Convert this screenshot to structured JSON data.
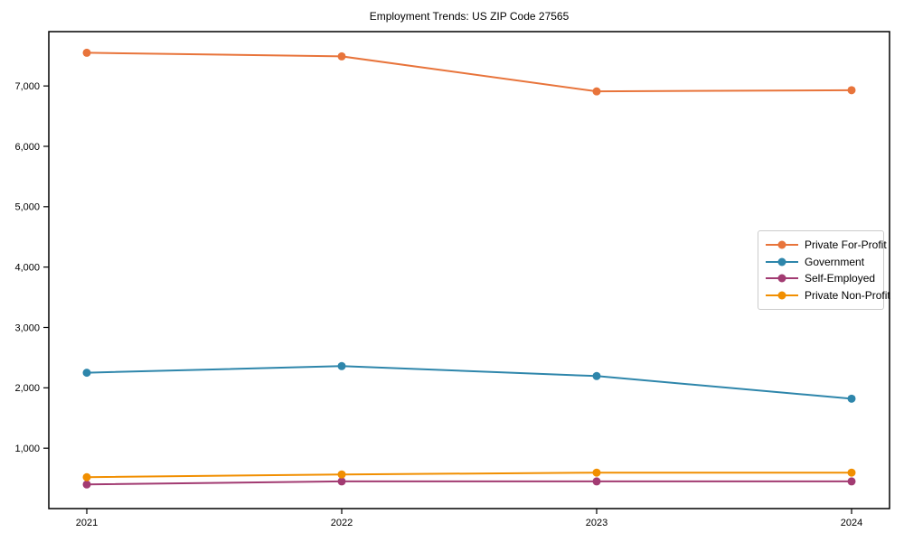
{
  "figure": {
    "title": "Employment Trends: US ZIP Code 27565"
  },
  "chart_data": {
    "type": "line",
    "title": "Employment Trends: US ZIP Code 27565",
    "categories": [
      "2021",
      "2022",
      "2023",
      "2024"
    ],
    "series": [
      {
        "name": "Private For-Profit",
        "color": "#E8743B",
        "values": [
          7550,
          7490,
          6910,
          6930
        ]
      },
      {
        "name": "Government",
        "color": "#2E86AB",
        "values": [
          2250,
          2360,
          2195,
          1820
        ]
      },
      {
        "name": "Self-Employed",
        "color": "#A23B72",
        "values": [
          400,
          450,
          450,
          450
        ]
      },
      {
        "name": "Private Non-Profit",
        "color": "#F18F01",
        "values": [
          520,
          565,
          595,
          595
        ]
      }
    ],
    "xlabel": "",
    "ylabel": "",
    "ylim": [
      0,
      7900
    ],
    "yticks": [
      1000,
      2000,
      3000,
      4000,
      5000,
      6000,
      7000
    ],
    "ytick_labels": [
      "1,000",
      "2,000",
      "3,000",
      "4,000",
      "5,000",
      "6,000",
      "7,000"
    ],
    "grid": false,
    "legend_position": "center-right",
    "marker": "circle",
    "line_width": 2,
    "frame_color": "#000000",
    "background_color": "#ffffff"
  }
}
